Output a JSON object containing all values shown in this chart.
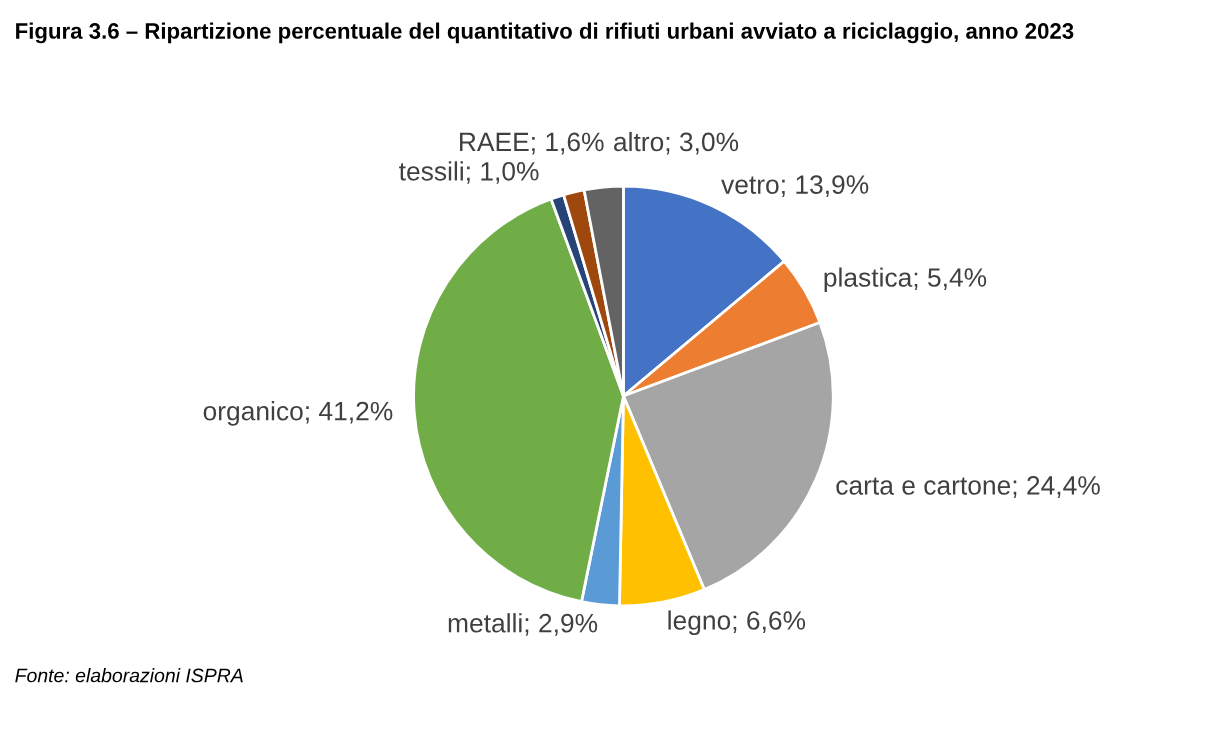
{
  "chart_data": {
    "type": "pie",
    "title": "Figura 3.6 – Ripartizione percentuale del quantitativo di rifiuti urbani avviato a riciclaggio, anno 2023",
    "categories": [
      "vetro",
      "plastica",
      "carta e cartone",
      "legno",
      "metalli",
      "organico",
      "tessili",
      "RAEE",
      "altro"
    ],
    "values": [
      13.9,
      5.4,
      24.4,
      6.6,
      2.9,
      41.2,
      1.0,
      1.6,
      3.0
    ],
    "value_labels": [
      "13,9%",
      "5,4%",
      "24,4%",
      "6,6%",
      "2,9%",
      "41,2%",
      "1,0%",
      "1,6%",
      "3,0%"
    ],
    "colors": [
      "#4472c4",
      "#ed7d31",
      "#a5a5a5",
      "#ffc000",
      "#5b9bd5",
      "#70ad47",
      "#264478",
      "#9e480e",
      "#636363"
    ],
    "annotations": [
      "Fonte: elaborazioni ISPRA"
    ]
  }
}
